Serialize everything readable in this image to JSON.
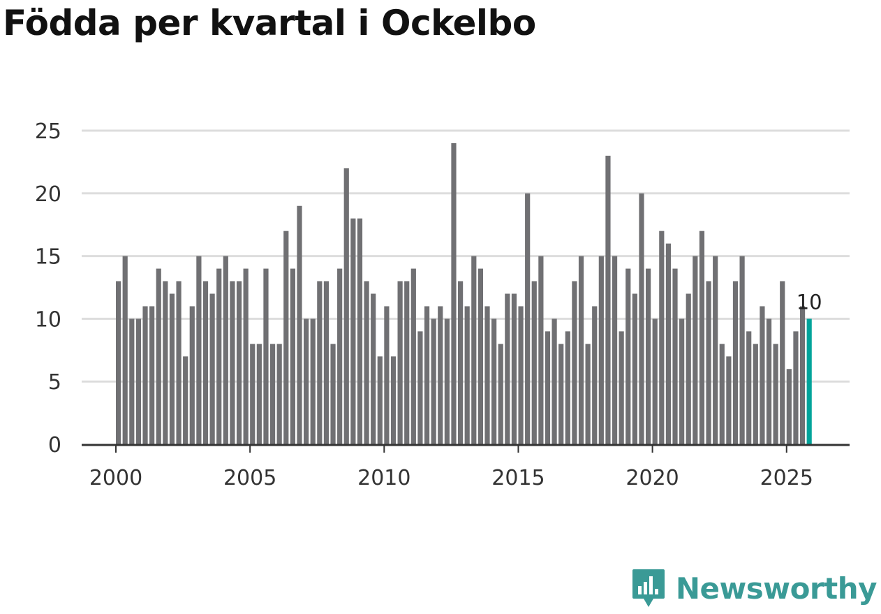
{
  "title": "Födda per kvartal i Ockelbo",
  "brand": {
    "name": "Newsworthy",
    "icon": "newsworthy-logo-icon",
    "color": "#3a9a96"
  },
  "colors": {
    "bar": "#707073",
    "highlight": "#00a39a",
    "grid": "#dddddd",
    "axis": "#333333"
  },
  "chart_data": {
    "type": "bar",
    "title": "Födda per kvartal i Ockelbo",
    "xlabel": "",
    "ylabel": "",
    "ylim": [
      0,
      25
    ],
    "yticks": [
      0,
      5,
      10,
      15,
      20,
      25
    ],
    "xticks": [
      "2000",
      "2005",
      "2010",
      "2015",
      "2020",
      "2025"
    ],
    "grid": true,
    "start_year": 2000,
    "start_quarter": 1,
    "highlight_label": "10",
    "values": [
      13,
      15,
      10,
      10,
      11,
      11,
      14,
      13,
      12,
      13,
      7,
      11,
      15,
      13,
      12,
      14,
      15,
      13,
      13,
      14,
      8,
      8,
      14,
      8,
      8,
      17,
      14,
      19,
      10,
      10,
      13,
      13,
      8,
      14,
      22,
      18,
      18,
      13,
      12,
      7,
      11,
      7,
      13,
      13,
      14,
      9,
      11,
      10,
      11,
      10,
      24,
      13,
      11,
      15,
      14,
      11,
      10,
      8,
      12,
      12,
      11,
      20,
      13,
      15,
      9,
      10,
      8,
      9,
      13,
      15,
      8,
      11,
      15,
      23,
      15,
      9,
      14,
      12,
      20,
      14,
      10,
      17,
      16,
      14,
      10,
      12,
      15,
      17,
      13,
      15,
      8,
      7,
      13,
      15,
      9,
      8,
      11,
      10,
      8,
      13,
      6,
      9,
      11,
      10
    ]
  }
}
